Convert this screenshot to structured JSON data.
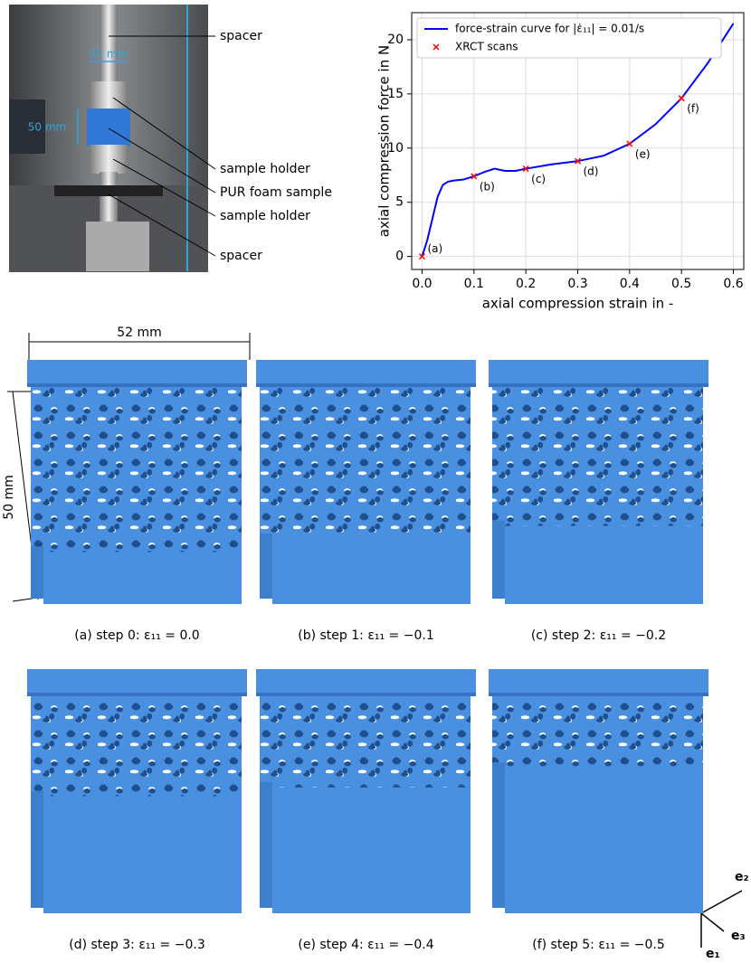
{
  "photo": {
    "labels": [
      "spacer",
      "sample holder",
      "PUR foam sample",
      "sample holder",
      "spacer"
    ],
    "dimensions": [
      "52 mm",
      "50 mm"
    ]
  },
  "chart_data": {
    "type": "line",
    "xlabel": "axial compression strain in -",
    "ylabel": "axial compression force in N",
    "series": [
      {
        "name": "force-strain curve for |ε̇₁₁| = 0.01/s",
        "color": "#0000ff",
        "x": [
          0,
          0.01,
          0.02,
          0.03,
          0.04,
          0.05,
          0.06,
          0.08,
          0.1,
          0.12,
          0.14,
          0.16,
          0.18,
          0.2,
          0.25,
          0.3,
          0.35,
          0.4,
          0.45,
          0.5,
          0.55,
          0.6
        ],
        "values": [
          0,
          1.5,
          3.5,
          5.5,
          6.6,
          6.9,
          7.0,
          7.1,
          7.4,
          7.8,
          8.1,
          7.9,
          7.9,
          8.1,
          8.5,
          8.8,
          9.3,
          10.4,
          12.2,
          14.6,
          17.8,
          21.5
        ]
      },
      {
        "name": "XRCT scans",
        "color": "#ff0000",
        "x": [
          0,
          0.1,
          0.2,
          0.3,
          0.4,
          0.5
        ],
        "values": [
          0,
          7.4,
          8.1,
          8.8,
          10.4,
          14.6
        ]
      }
    ],
    "annotations": [
      "(a)",
      "(b)",
      "(c)",
      "(d)",
      "(e)",
      "(f)"
    ],
    "xlim": [
      -0.02,
      0.62
    ],
    "ylim": [
      -1.2,
      22.5
    ],
    "xticks": [
      {
        "value": 0,
        "label": "0.0"
      },
      0.1,
      0.2,
      0.3,
      0.4,
      0.5,
      0.6
    ],
    "yticks": [
      0,
      5,
      10,
      15,
      20
    ],
    "grid": true,
    "legend": "upper left"
  },
  "renderings": {
    "dimensions": [
      "52 mm",
      "50 mm"
    ],
    "captions": [
      "(a) step 0: ε₁₁ = 0.0",
      "(b) step 1: ε₁₁ = −0.1",
      "(c) step 2: ε₁₁ = −0.2",
      "(d) step 3: ε₁₁ = −0.3",
      "(e) step 4: ε₁₁ = −0.4",
      "(f) step 5: ε₁₁ = −0.5"
    ],
    "axes": [
      "e₂",
      "e₃",
      "e₁"
    ]
  }
}
